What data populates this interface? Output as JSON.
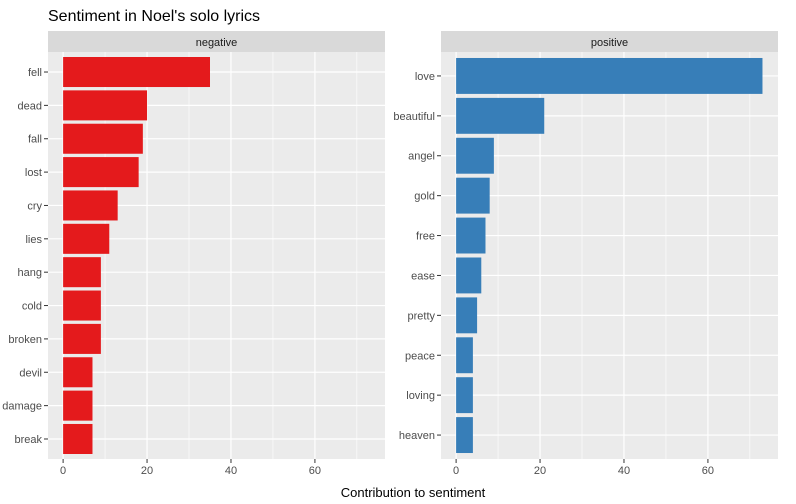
{
  "chart_data": {
    "type": "bar",
    "title": "Sentiment in Noel's solo lyrics",
    "xlabel": "Contribution to sentiment",
    "ylabel": "",
    "orientation": "horizontal",
    "xlim": [
      -3.6,
      76.7
    ],
    "x_ticks": [
      0,
      20,
      40,
      60
    ],
    "grid": true,
    "panels": [
      {
        "name": "negative",
        "color": "#E41A1C",
        "categories": [
          "fell",
          "dead",
          "fall",
          "lost",
          "cry",
          "lies",
          "hang",
          "cold",
          "broken",
          "devil",
          "damage",
          "break"
        ],
        "values": [
          35,
          20,
          19,
          18,
          13,
          11,
          9,
          9,
          9,
          7,
          7,
          7
        ]
      },
      {
        "name": "positive",
        "color": "#377EB8",
        "categories": [
          "love",
          "beautiful",
          "angel",
          "gold",
          "free",
          "ease",
          "pretty",
          "peace",
          "loving",
          "heaven"
        ],
        "values": [
          73,
          21,
          9,
          8,
          7,
          6,
          5,
          4,
          4,
          4
        ]
      }
    ]
  }
}
